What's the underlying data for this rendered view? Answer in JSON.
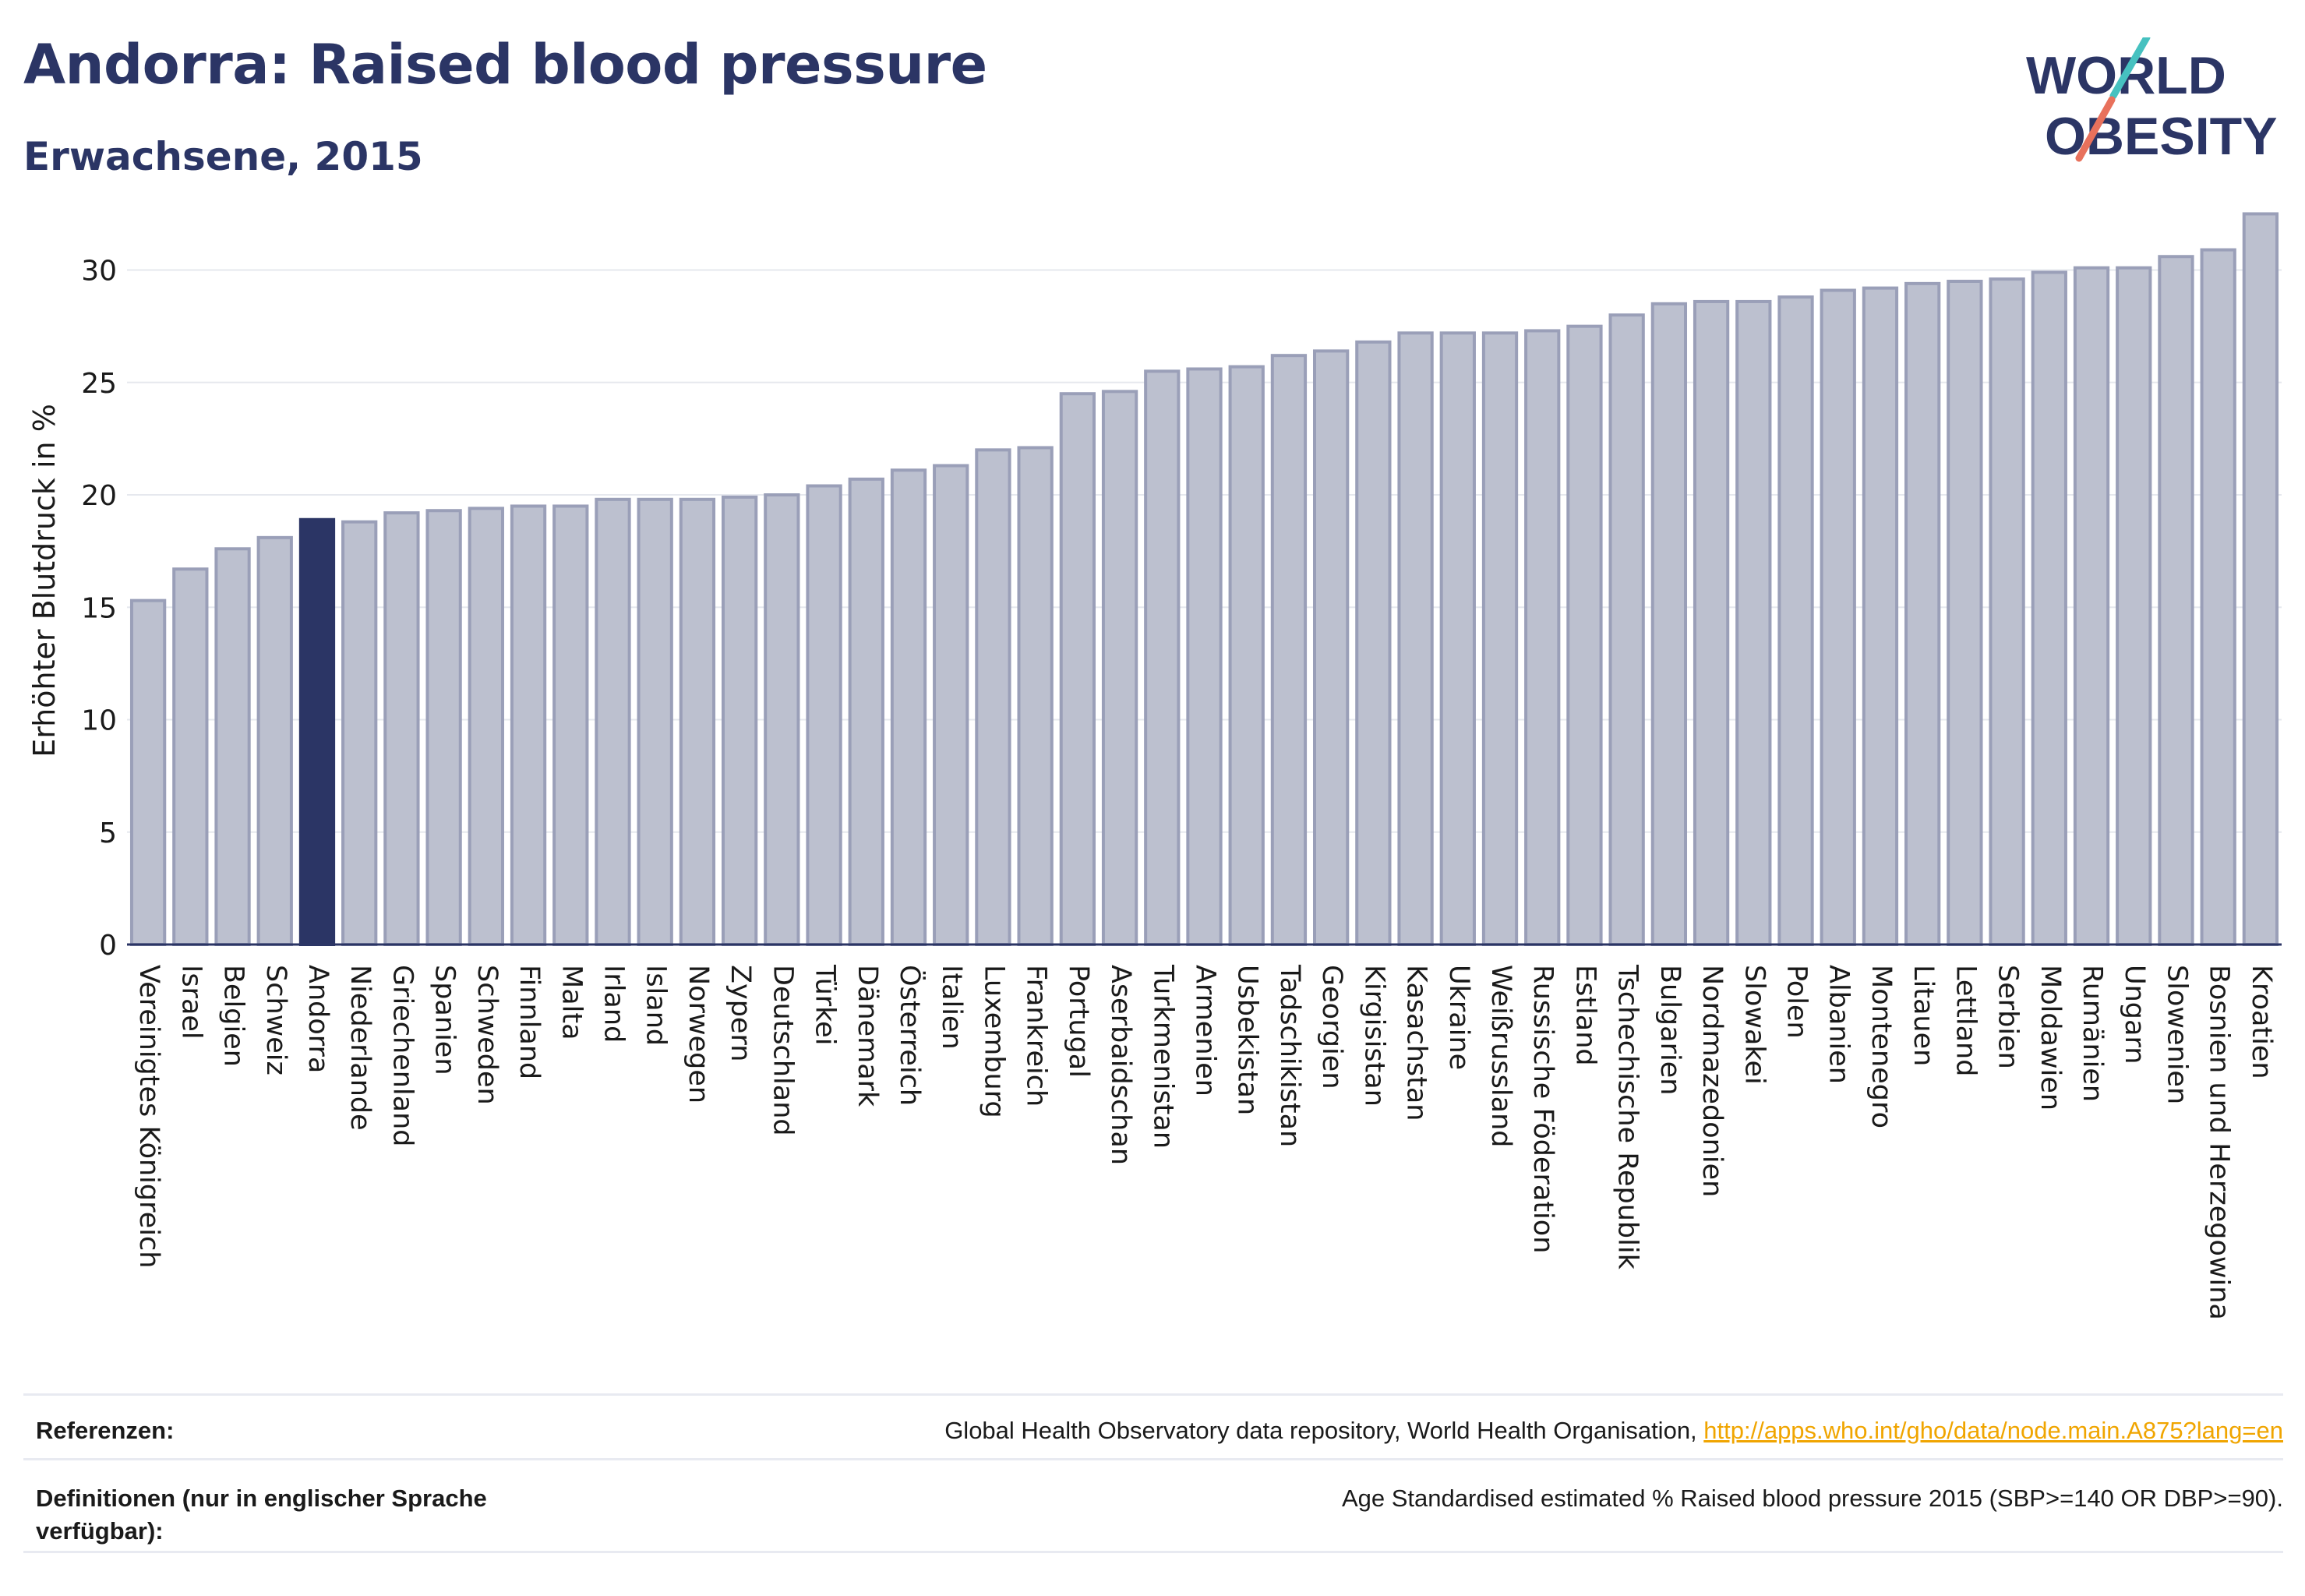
{
  "header": {
    "title": "Andorra: Raised blood pressure",
    "subtitle": "Erwachsene, 2015"
  },
  "logo": {
    "line1": "WORLD",
    "line2": "OBESITY",
    "slash_colors": [
      "#46c1c0",
      "#e8715c"
    ],
    "text_color": "#2b3565"
  },
  "colors": {
    "bar": "#bcc0cf",
    "bar_border": "#9a9fb8",
    "highlight": "#2b3565",
    "grid": "#e6e8ee",
    "axis": "#2b3565"
  },
  "chart_data": {
    "type": "bar",
    "title": "",
    "xlabel": "",
    "ylabel": "Erhöhter Blutdruck in %",
    "ylim": [
      0,
      33
    ],
    "yticks": [
      0,
      5,
      10,
      15,
      20,
      25,
      30
    ],
    "grid": true,
    "highlight": "Andorra",
    "categories": [
      "Vereinigtes Königreich",
      "Israel",
      "Belgien",
      "Schweiz",
      "Andorra",
      "Niederlande",
      "Griechenland",
      "Spanien",
      "Schweden",
      "Finnland",
      "Malta",
      "Irland",
      "Island",
      "Norwegen",
      "Zypern",
      "Deutschland",
      "Türkei",
      "Dänemark",
      "Österreich",
      "Italien",
      "Luxemburg",
      "Frankreich",
      "Portugal",
      "Aserbaidschan",
      "Turkmenistan",
      "Armenien",
      "Usbekistan",
      "Tadschikistan",
      "Georgien",
      "Kirgisistan",
      "Kasachstan",
      "Ukraine",
      "Weißrussland",
      "Russische Föderation",
      "Estland",
      "Tschechische Republik",
      "Bulgarien",
      "Nordmazedonien",
      "Slowakei",
      "Polen",
      "Albanien",
      "Montenegro",
      "Litauen",
      "Lettland",
      "Serbien",
      "Moldawien",
      "Rumänien",
      "Ungarn",
      "Slowenien",
      "Bosnien und Herzegowina",
      "Kroatien"
    ],
    "values": [
      15.3,
      16.7,
      17.6,
      18.1,
      18.9,
      18.8,
      19.2,
      19.3,
      19.4,
      19.5,
      19.5,
      19.8,
      19.8,
      19.8,
      19.9,
      20.0,
      20.4,
      20.7,
      21.1,
      21.3,
      22.0,
      22.1,
      24.5,
      24.6,
      25.5,
      25.6,
      25.7,
      26.2,
      26.4,
      26.8,
      27.2,
      27.2,
      27.2,
      27.3,
      27.5,
      28.0,
      28.5,
      28.6,
      28.6,
      28.8,
      29.1,
      29.2,
      29.4,
      29.5,
      29.6,
      29.9,
      30.1,
      30.1,
      30.6,
      30.9,
      32.5
    ]
  },
  "footer": {
    "references_label": "Referenzen:",
    "references_text": "Global Health Observatory data repository, World Health Organisation, ",
    "references_link": "http://apps.who.int/gho/data/node.main.A875?lang=en",
    "definitions_label": "Definitionen (nur in englischer Sprache verfügbar):",
    "definitions_text": "Age Standardised estimated % Raised blood pressure 2015 (SBP>=140 OR DBP>=90)."
  }
}
